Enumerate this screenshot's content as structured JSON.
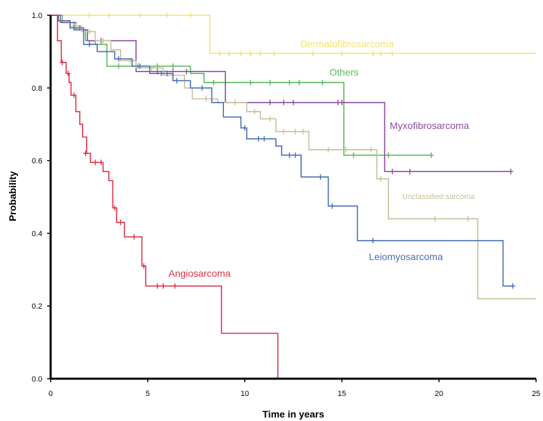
{
  "chart_data": {
    "type": "line",
    "title": "",
    "xlabel": "Time in years",
    "ylabel": "Probability",
    "xlim": [
      0,
      25
    ],
    "ylim": [
      0,
      1
    ],
    "xticks": [
      "0",
      "5",
      "10",
      "15",
      "20",
      "25"
    ],
    "yticks": [
      "0.0",
      "0.2",
      "0.4",
      "0.6",
      "0.8",
      "1.0"
    ],
    "grid": false,
    "legend": "inline labels",
    "series": [
      {
        "name": "Dermatofibrosarcoma",
        "color": "#f3e36d",
        "steps": [
          [
            0,
            1.0
          ],
          [
            8.2,
            1.0
          ],
          [
            8.2,
            0.895
          ],
          [
            25,
            0.895
          ]
        ],
        "censors": [
          [
            2,
            1.0
          ],
          [
            3,
            1.0
          ],
          [
            4.6,
            1.0
          ],
          [
            6,
            1.0
          ],
          [
            7.2,
            1.0
          ],
          [
            8.7,
            0.895
          ],
          [
            9.2,
            0.895
          ],
          [
            9.8,
            0.895
          ],
          [
            10.3,
            0.895
          ],
          [
            10.8,
            0.895
          ],
          [
            11.5,
            0.895
          ],
          [
            13.5,
            0.895
          ],
          [
            15,
            0.895
          ],
          [
            16.6,
            0.895
          ],
          [
            17,
            0.895
          ],
          [
            17.6,
            0.895
          ]
        ]
      },
      {
        "name": "Others",
        "color": "#5cb85c",
        "steps": [
          [
            0,
            1.0
          ],
          [
            0.6,
            1.0
          ],
          [
            0.6,
            0.98
          ],
          [
            1.2,
            0.98
          ],
          [
            1.2,
            0.96
          ],
          [
            1.8,
            0.96
          ],
          [
            1.8,
            0.93
          ],
          [
            2.3,
            0.93
          ],
          [
            2.3,
            0.92
          ],
          [
            2.9,
            0.92
          ],
          [
            2.9,
            0.86
          ],
          [
            7.2,
            0.86
          ],
          [
            7.2,
            0.84
          ],
          [
            7.9,
            0.84
          ],
          [
            7.9,
            0.815
          ],
          [
            15.1,
            0.815
          ],
          [
            15.1,
            0.615
          ],
          [
            19.6,
            0.615
          ]
        ],
        "censors": [
          [
            3.5,
            0.86
          ],
          [
            4.5,
            0.86
          ],
          [
            5.5,
            0.86
          ],
          [
            6.3,
            0.86
          ],
          [
            8.4,
            0.815
          ],
          [
            9.0,
            0.815
          ],
          [
            10.3,
            0.815
          ],
          [
            11.3,
            0.815
          ],
          [
            12.3,
            0.815
          ],
          [
            12.8,
            0.815
          ],
          [
            14.0,
            0.815
          ],
          [
            15.6,
            0.615
          ],
          [
            17.4,
            0.615
          ],
          [
            19.6,
            0.615
          ]
        ]
      },
      {
        "name": "Myxofibrosarcoma",
        "color": "#8b4c9e",
        "steps": [
          [
            0,
            1.0
          ],
          [
            0.5,
            1.0
          ],
          [
            0.5,
            0.98
          ],
          [
            1.3,
            0.98
          ],
          [
            1.3,
            0.96
          ],
          [
            1.9,
            0.96
          ],
          [
            1.9,
            0.93
          ],
          [
            4.4,
            0.93
          ],
          [
            4.4,
            0.845
          ],
          [
            9.0,
            0.845
          ],
          [
            9.0,
            0.76
          ],
          [
            17.2,
            0.76
          ],
          [
            17.2,
            0.57
          ],
          [
            23.7,
            0.57
          ]
        ],
        "censors": [
          [
            2.6,
            0.93
          ],
          [
            5.5,
            0.845
          ],
          [
            6.3,
            0.845
          ],
          [
            7.0,
            0.845
          ],
          [
            11.3,
            0.76
          ],
          [
            12.0,
            0.76
          ],
          [
            12.5,
            0.76
          ],
          [
            14.8,
            0.76
          ],
          [
            15.0,
            0.76
          ],
          [
            17.6,
            0.57
          ],
          [
            18.5,
            0.57
          ],
          [
            23.7,
            0.57
          ]
        ]
      },
      {
        "name": "Unclassified sarcoma",
        "color": "#c8c09a",
        "steps": [
          [
            0,
            1.0
          ],
          [
            0.4,
            1.0
          ],
          [
            0.4,
            0.985
          ],
          [
            1.0,
            0.985
          ],
          [
            1.0,
            0.97
          ],
          [
            1.6,
            0.97
          ],
          [
            1.6,
            0.955
          ],
          [
            2.3,
            0.955
          ],
          [
            2.3,
            0.93
          ],
          [
            3.1,
            0.93
          ],
          [
            3.1,
            0.905
          ],
          [
            3.6,
            0.905
          ],
          [
            3.6,
            0.875
          ],
          [
            4.4,
            0.875
          ],
          [
            4.4,
            0.855
          ],
          [
            5.8,
            0.855
          ],
          [
            5.8,
            0.835
          ],
          [
            6.9,
            0.835
          ],
          [
            6.9,
            0.8
          ],
          [
            7.3,
            0.8
          ],
          [
            7.3,
            0.77
          ],
          [
            8.6,
            0.77
          ],
          [
            8.6,
            0.76
          ],
          [
            10.1,
            0.76
          ],
          [
            10.1,
            0.735
          ],
          [
            10.8,
            0.735
          ],
          [
            10.8,
            0.715
          ],
          [
            11.6,
            0.715
          ],
          [
            11.6,
            0.68
          ],
          [
            13.3,
            0.68
          ],
          [
            13.3,
            0.63
          ],
          [
            16.8,
            0.63
          ],
          [
            16.8,
            0.55
          ],
          [
            17.4,
            0.55
          ],
          [
            17.4,
            0.44
          ],
          [
            22.0,
            0.44
          ],
          [
            22.0,
            0.22
          ],
          [
            25,
            0.22
          ]
        ],
        "censors": [
          [
            1.3,
            0.97
          ],
          [
            2.0,
            0.955
          ],
          [
            2.7,
            0.93
          ],
          [
            4.1,
            0.875
          ],
          [
            5.2,
            0.855
          ],
          [
            6.3,
            0.835
          ],
          [
            8.0,
            0.77
          ],
          [
            9.5,
            0.76
          ],
          [
            10.5,
            0.735
          ],
          [
            11.3,
            0.715
          ],
          [
            12.0,
            0.68
          ],
          [
            12.6,
            0.68
          ],
          [
            13.0,
            0.68
          ],
          [
            14.3,
            0.63
          ],
          [
            15.2,
            0.63
          ],
          [
            16.5,
            0.63
          ],
          [
            17.0,
            0.55
          ],
          [
            19.8,
            0.44
          ],
          [
            21.5,
            0.44
          ]
        ]
      },
      {
        "name": "Leiomyosarcoma",
        "color": "#4a6fb5",
        "steps": [
          [
            0,
            1.0
          ],
          [
            0.4,
            1.0
          ],
          [
            0.4,
            0.985
          ],
          [
            1.0,
            0.985
          ],
          [
            1.0,
            0.965
          ],
          [
            1.7,
            0.965
          ],
          [
            1.7,
            0.92
          ],
          [
            2.4,
            0.92
          ],
          [
            2.4,
            0.9
          ],
          [
            3.3,
            0.9
          ],
          [
            3.3,
            0.88
          ],
          [
            4.2,
            0.88
          ],
          [
            4.2,
            0.86
          ],
          [
            5.1,
            0.86
          ],
          [
            5.1,
            0.84
          ],
          [
            6.3,
            0.84
          ],
          [
            6.3,
            0.82
          ],
          [
            7.2,
            0.82
          ],
          [
            7.2,
            0.8
          ],
          [
            8.3,
            0.8
          ],
          [
            8.3,
            0.76
          ],
          [
            8.9,
            0.76
          ],
          [
            8.9,
            0.72
          ],
          [
            9.8,
            0.72
          ],
          [
            9.8,
            0.69
          ],
          [
            10.1,
            0.69
          ],
          [
            10.1,
            0.66
          ],
          [
            11.6,
            0.66
          ],
          [
            11.6,
            0.64
          ],
          [
            11.9,
            0.64
          ],
          [
            11.9,
            0.615
          ],
          [
            12.9,
            0.615
          ],
          [
            12.9,
            0.555
          ],
          [
            14.3,
            0.555
          ],
          [
            14.3,
            0.475
          ],
          [
            15.8,
            0.475
          ],
          [
            15.8,
            0.38
          ],
          [
            23.3,
            0.38
          ],
          [
            23.3,
            0.255
          ],
          [
            23.8,
            0.255
          ]
        ],
        "censors": [
          [
            1.2,
            0.965
          ],
          [
            1.5,
            0.965
          ],
          [
            2.0,
            0.92
          ],
          [
            3.5,
            0.88
          ],
          [
            4.6,
            0.86
          ],
          [
            5.7,
            0.84
          ],
          [
            6.0,
            0.84
          ],
          [
            6.5,
            0.82
          ],
          [
            7.8,
            0.8
          ],
          [
            10.0,
            0.69
          ],
          [
            10.7,
            0.66
          ],
          [
            11.0,
            0.66
          ],
          [
            12.3,
            0.615
          ],
          [
            12.6,
            0.615
          ],
          [
            13.9,
            0.555
          ],
          [
            14.5,
            0.475
          ],
          [
            16.6,
            0.38
          ],
          [
            23.8,
            0.255
          ]
        ]
      },
      {
        "name": "Angiosarcoma",
        "color": "#d9344a",
        "steps": [
          [
            0,
            1.0
          ],
          [
            0.35,
            1.0
          ],
          [
            0.35,
            0.93
          ],
          [
            0.55,
            0.93
          ],
          [
            0.55,
            0.87
          ],
          [
            0.8,
            0.87
          ],
          [
            0.8,
            0.84
          ],
          [
            0.95,
            0.84
          ],
          [
            0.95,
            0.815
          ],
          [
            1.05,
            0.815
          ],
          [
            1.05,
            0.78
          ],
          [
            1.3,
            0.78
          ],
          [
            1.3,
            0.735
          ],
          [
            1.5,
            0.735
          ],
          [
            1.5,
            0.7
          ],
          [
            1.65,
            0.7
          ],
          [
            1.65,
            0.665
          ],
          [
            1.85,
            0.665
          ],
          [
            1.85,
            0.62
          ],
          [
            2.05,
            0.62
          ],
          [
            2.05,
            0.595
          ],
          [
            2.7,
            0.595
          ],
          [
            2.7,
            0.57
          ],
          [
            3.0,
            0.57
          ],
          [
            3.0,
            0.545
          ],
          [
            3.2,
            0.545
          ],
          [
            3.2,
            0.47
          ],
          [
            3.4,
            0.47
          ],
          [
            3.4,
            0.43
          ],
          [
            3.8,
            0.43
          ],
          [
            3.8,
            0.39
          ],
          [
            4.7,
            0.39
          ],
          [
            4.7,
            0.31
          ],
          [
            4.9,
            0.31
          ],
          [
            4.9,
            0.255
          ],
          [
            8.8,
            0.255
          ],
          [
            8.8,
            0.125
          ],
          [
            11.7,
            0.125
          ],
          [
            11.7,
            0.0
          ]
        ],
        "censors": [
          [
            0.6,
            0.87
          ],
          [
            0.9,
            0.84
          ],
          [
            1.2,
            0.78
          ],
          [
            1.8,
            0.62
          ],
          [
            2.3,
            0.595
          ],
          [
            2.6,
            0.595
          ],
          [
            3.3,
            0.47
          ],
          [
            3.6,
            0.43
          ],
          [
            4.3,
            0.39
          ],
          [
            4.8,
            0.31
          ],
          [
            5.5,
            0.255
          ],
          [
            5.8,
            0.255
          ],
          [
            6.4,
            0.255
          ]
        ]
      }
    ]
  },
  "labels": {
    "dermatofibrosarcoma": {
      "text": "Dermatofibrosarcoma",
      "color": "#f3e36d"
    },
    "others": {
      "text": "Others",
      "color": "#5cb85c"
    },
    "myxofibrosarcoma": {
      "text": "Myxofibrosarcoma",
      "color": "#8b4c9e"
    },
    "unclassified": {
      "text": "Unclassified sarcoma",
      "color": "#c8c09a"
    },
    "leiomyosarcoma": {
      "text": "Leiomyosarcoma",
      "color": "#4a6fb5"
    },
    "angiosarcoma": {
      "text": "Angiosarcoma",
      "color": "#d9344a"
    }
  }
}
